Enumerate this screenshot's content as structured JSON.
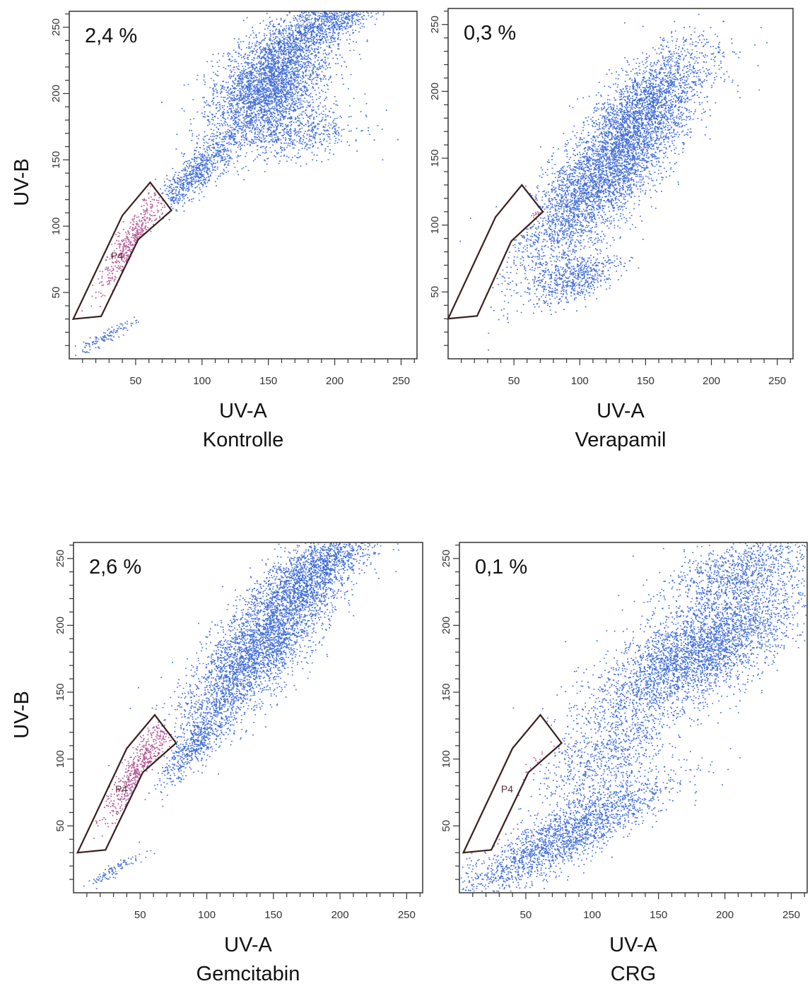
{
  "figure": {
    "row_ylabels": [
      "UV-B",
      "UV-B"
    ]
  },
  "colors": {
    "events": "#2f5fd4",
    "gated_events": "#b0508e",
    "gate_outline": "#3a1e1e",
    "axes": "#333333"
  },
  "chart_data": [
    {
      "type": "scatter",
      "condition": "Kontrolle",
      "percent_label": "2,4 %",
      "xlabel": "UV-A",
      "ylabel": "UV-B",
      "xlim": [
        0,
        262
      ],
      "ylim": [
        0,
        262
      ],
      "xticks": [
        50,
        100,
        150,
        200,
        250
      ],
      "yticks": [
        50,
        100,
        150,
        200,
        250
      ],
      "gate": {
        "name": "P4",
        "polygon": [
          [
            3,
            30
          ],
          [
            24,
            32
          ],
          [
            52,
            90
          ],
          [
            77,
            112
          ],
          [
            61,
            133
          ],
          [
            40,
            108
          ]
        ]
      },
      "point_clouds": [
        {
          "center": [
            150,
            205
          ],
          "sigma": [
            27,
            16
          ],
          "angle_deg": 47,
          "n": 3200
        },
        {
          "center": [
            195,
            255
          ],
          "sigma": [
            28,
            9
          ],
          "angle_deg": 30,
          "n": 900
        },
        {
          "center": [
            175,
            170
          ],
          "sigma": [
            22,
            10
          ],
          "angle_deg": 10,
          "n": 500
        },
        {
          "center": [
            95,
            140
          ],
          "sigma": [
            20,
            6
          ],
          "angle_deg": 45,
          "n": 700
        },
        {
          "center": [
            25,
            15
          ],
          "sigma": [
            14,
            2
          ],
          "angle_deg": 30,
          "n": 120
        }
      ],
      "gated_cloud": {
        "center": [
          48,
          90
        ],
        "sigma": [
          22,
          5
        ],
        "angle_deg": 58,
        "n": 450
      }
    },
    {
      "type": "scatter",
      "condition": "Verapamil",
      "percent_label": "0,3 %",
      "xlabel": "UV-A",
      "ylabel": "UV-B",
      "xlim": [
        0,
        262
      ],
      "ylim": [
        0,
        262
      ],
      "xticks": [
        50,
        100,
        150,
        200,
        250
      ],
      "yticks": [
        50,
        100,
        150,
        200,
        250
      ],
      "gate": {
        "name": "",
        "polygon": [
          [
            0,
            30
          ],
          [
            22,
            32
          ],
          [
            48,
            88
          ],
          [
            72,
            110
          ],
          [
            56,
            130
          ],
          [
            36,
            106
          ]
        ]
      },
      "point_clouds": [
        {
          "center": [
            120,
            140
          ],
          "sigma": [
            48,
            15
          ],
          "angle_deg": 48,
          "n": 4200
        },
        {
          "center": [
            150,
            195
          ],
          "sigma": [
            30,
            12
          ],
          "angle_deg": 45,
          "n": 1200
        },
        {
          "center": [
            95,
            60
          ],
          "sigma": [
            18,
            8
          ],
          "angle_deg": 20,
          "n": 600
        }
      ],
      "gated_cloud": {
        "center": [
          68,
          109
        ],
        "sigma": [
          3,
          2
        ],
        "angle_deg": 40,
        "n": 15
      }
    },
    {
      "type": "scatter",
      "condition": "Gemcitabin",
      "percent_label": "2,6 %",
      "xlabel": "UV-A",
      "ylabel": "UV-B",
      "xlim": [
        0,
        262
      ],
      "ylim": [
        0,
        262
      ],
      "xticks": [
        50,
        100,
        150,
        200,
        250
      ],
      "yticks": [
        50,
        100,
        150,
        200,
        250
      ],
      "gate": {
        "name": "P4",
        "polygon": [
          [
            3,
            30
          ],
          [
            24,
            32
          ],
          [
            52,
            90
          ],
          [
            77,
            112
          ],
          [
            61,
            133
          ],
          [
            40,
            108
          ]
        ]
      },
      "point_clouds": [
        {
          "center": [
            140,
            185
          ],
          "sigma": [
            42,
            14
          ],
          "angle_deg": 50,
          "n": 3600
        },
        {
          "center": [
            185,
            245
          ],
          "sigma": [
            30,
            10
          ],
          "angle_deg": 35,
          "n": 1100
        },
        {
          "center": [
            90,
            110
          ],
          "sigma": [
            18,
            6
          ],
          "angle_deg": 50,
          "n": 500
        },
        {
          "center": [
            30,
            17
          ],
          "sigma": [
            14,
            2
          ],
          "angle_deg": 30,
          "n": 100
        }
      ],
      "gated_cloud": {
        "center": [
          50,
          95
        ],
        "sigma": [
          22,
          5
        ],
        "angle_deg": 58,
        "n": 520
      }
    },
    {
      "type": "scatter",
      "condition": "CRG",
      "percent_label": "0,1 %",
      "xlabel": "UV-A",
      "ylabel": "UV-B",
      "xlim": [
        0,
        262
      ],
      "ylim": [
        0,
        262
      ],
      "xticks": [
        50,
        100,
        150,
        200,
        250
      ],
      "yticks": [
        50,
        100,
        150,
        200,
        250
      ],
      "gate": {
        "name": "P4",
        "polygon": [
          [
            3,
            30
          ],
          [
            24,
            32
          ],
          [
            52,
            90
          ],
          [
            77,
            112
          ],
          [
            61,
            133
          ],
          [
            40,
            108
          ]
        ]
      },
      "point_clouds": [
        {
          "center": [
            180,
            180
          ],
          "sigma": [
            42,
            16
          ],
          "angle_deg": 30,
          "n": 3400
        },
        {
          "center": [
            210,
            240
          ],
          "sigma": [
            30,
            12
          ],
          "angle_deg": 20,
          "n": 900
        },
        {
          "center": [
            75,
            40
          ],
          "sigma": [
            45,
            10
          ],
          "angle_deg": 28,
          "n": 1900
        },
        {
          "center": [
            110,
            100
          ],
          "sigma": [
            30,
            18
          ],
          "angle_deg": 40,
          "n": 900
        }
      ],
      "gated_cloud": {
        "center": [
          58,
          95
        ],
        "sigma": [
          8,
          3
        ],
        "angle_deg": 55,
        "n": 15
      }
    }
  ]
}
